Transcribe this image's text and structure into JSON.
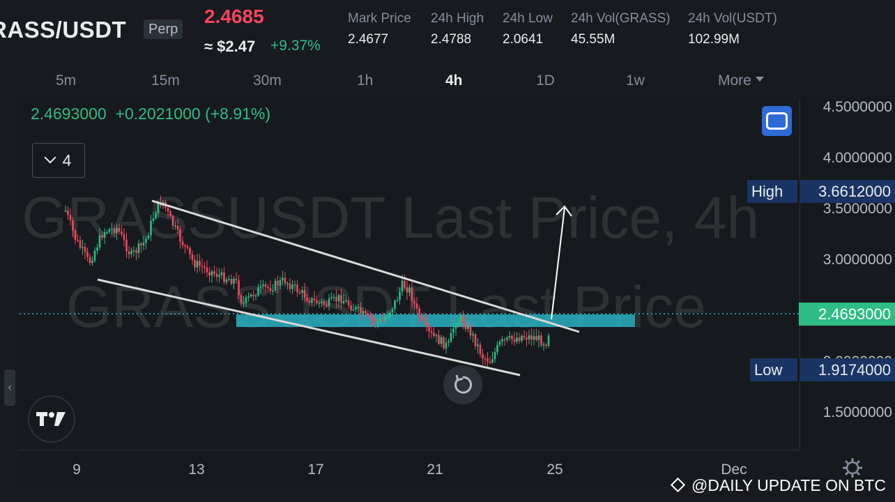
{
  "header": {
    "symbol": "RASS/USDT",
    "contract_type": "Perp",
    "last_price": "2.4685",
    "usd_price": "≈ $2.47",
    "change_pct": "+9.37%",
    "stats": [
      {
        "label": "Mark Price",
        "value": "2.4677"
      },
      {
        "label": "24h High",
        "value": "2.4788"
      },
      {
        "label": "24h Low",
        "value": "2.0641"
      },
      {
        "label": "24h Vol(GRASS)",
        "value": "45.55M"
      },
      {
        "label": "24h Vol(USDT)",
        "value": "102.99M"
      }
    ]
  },
  "intervals": {
    "items": [
      "5m",
      "15m",
      "30m",
      "1h",
      "4h",
      "1D",
      "1w"
    ],
    "active": "4h",
    "more_label": "More"
  },
  "chart": {
    "ohlc_close": "2.4693000",
    "ohlc_change": "+0.2021000",
    "ohlc_change_pct": "(+8.91%)",
    "indicator_count": "4",
    "watermark": "GRASSUSDT Last Price, 4h",
    "watermark_secondary": "GRASSUSDT Last Price",
    "high_label": "High",
    "high_value": "3.6612000",
    "low_label": "Low",
    "low_value": "1.9174000",
    "current_price_tag": "2.4693000",
    "price_ticks": [
      "4.5000000",
      "4.0000000",
      "3.5000000",
      "3.0000000",
      "2.0000000",
      "1.5000000"
    ],
    "time_ticks": [
      "9",
      "13",
      "17",
      "21",
      "25",
      "Dec"
    ]
  },
  "footer": {
    "watermark": "@DAILY UPDATE ON BTC"
  },
  "colors": {
    "up": "#2ebd85",
    "down": "#f6465d",
    "zone": "#2bb7c8",
    "trendline": "#d9d9d9"
  },
  "icons": {
    "fullscreen": "fullscreen-icon",
    "collapse": "chevron-down-icon",
    "reset": "reset-icon",
    "logo": "tradingview-logo",
    "settings": "gear-icon",
    "side": "chevron-left-icon"
  }
}
